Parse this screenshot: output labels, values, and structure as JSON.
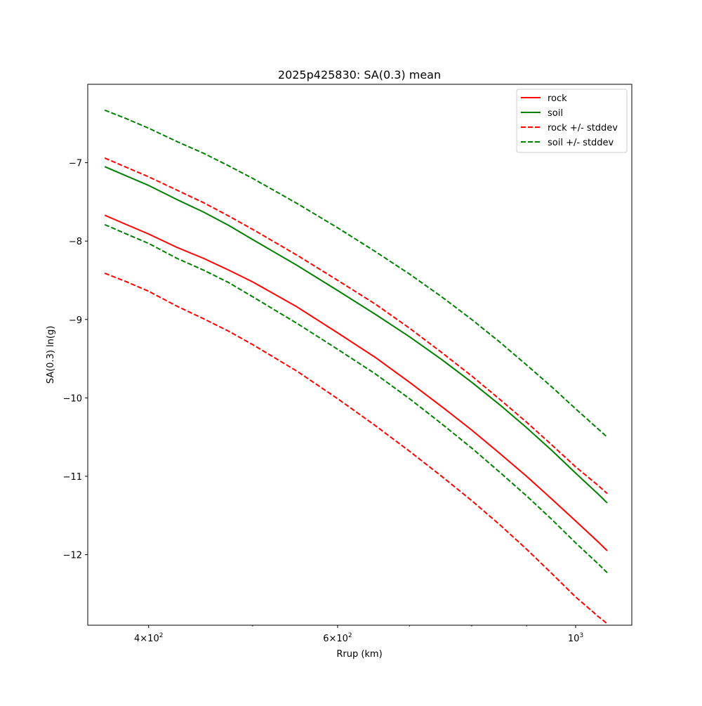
{
  "chart_data": {
    "type": "line",
    "title": "2025p425830: SA(0.3) mean",
    "xlabel": "Rrup (km)",
    "ylabel": "SA(0.3) ln(g)",
    "xscale": "log",
    "xlim": [
      351,
      1128
    ],
    "ylim": [
      -12.9,
      -6.0
    ],
    "grid": false,
    "legend_position": "top-right",
    "x_ticks": [
      {
        "value": 400,
        "base": "4×10",
        "exp": "2"
      },
      {
        "value": 600,
        "base": "6×10",
        "exp": "2"
      },
      {
        "value": 1000,
        "base": "10",
        "exp": "3"
      }
    ],
    "x_minor_ticks": [
      500,
      700,
      800,
      900
    ],
    "y_ticks": [
      {
        "value": -7,
        "label": "−7"
      },
      {
        "value": -8,
        "label": "−8"
      },
      {
        "value": -9,
        "label": "−9"
      },
      {
        "value": -10,
        "label": "−10"
      },
      {
        "value": -11,
        "label": "−11"
      },
      {
        "value": -12,
        "label": "−12"
      }
    ],
    "x": [
      364,
      380,
      400,
      425,
      450,
      475,
      500,
      550,
      600,
      650,
      700,
      750,
      800,
      850,
      900,
      950,
      1000,
      1050,
      1070
    ],
    "series": [
      {
        "name": "rock",
        "color": "#ff0000",
        "dash": "solid",
        "values": [
          -7.67,
          -7.78,
          -7.91,
          -8.08,
          -8.22,
          -8.37,
          -8.52,
          -8.84,
          -9.17,
          -9.48,
          -9.8,
          -10.11,
          -10.41,
          -10.71,
          -11.0,
          -11.29,
          -11.57,
          -11.84,
          -11.95
        ]
      },
      {
        "name": "soil",
        "color": "#008000",
        "dash": "solid",
        "values": [
          -7.05,
          -7.16,
          -7.29,
          -7.47,
          -7.63,
          -7.8,
          -7.98,
          -8.31,
          -8.63,
          -8.93,
          -9.22,
          -9.51,
          -9.8,
          -10.09,
          -10.38,
          -10.67,
          -10.96,
          -11.23,
          -11.34
        ]
      },
      {
        "name": "rock +/- stddev",
        "color": "#ff0000",
        "dash": "dashed",
        "values": [
          -6.94,
          -7.05,
          -7.18,
          -7.35,
          -7.51,
          -7.68,
          -7.85,
          -8.18,
          -8.5,
          -8.8,
          -9.11,
          -9.42,
          -9.72,
          -10.02,
          -10.31,
          -10.6,
          -10.88,
          -11.12,
          -11.22
        ]
      },
      {
        "name": "rock +/- stddev",
        "color": "#ff0000",
        "dash": "dashed",
        "in_legend": false,
        "values": [
          -8.41,
          -8.51,
          -8.64,
          -8.83,
          -8.99,
          -9.15,
          -9.32,
          -9.66,
          -10.01,
          -10.35,
          -10.68,
          -11.0,
          -11.31,
          -11.62,
          -11.93,
          -12.24,
          -12.54,
          -12.79,
          -12.88
        ]
      },
      {
        "name": "soil +/- stddev",
        "color": "#008000",
        "dash": "dashed",
        "values": [
          -6.33,
          -6.43,
          -6.56,
          -6.73,
          -6.88,
          -7.04,
          -7.2,
          -7.52,
          -7.83,
          -8.13,
          -8.42,
          -8.71,
          -9.0,
          -9.29,
          -9.58,
          -9.86,
          -10.14,
          -10.4,
          -10.5
        ]
      },
      {
        "name": "soil +/- stddev",
        "color": "#008000",
        "dash": "dashed",
        "in_legend": false,
        "values": [
          -7.79,
          -7.9,
          -8.03,
          -8.22,
          -8.37,
          -8.53,
          -8.71,
          -9.05,
          -9.38,
          -9.69,
          -10.01,
          -10.33,
          -10.64,
          -10.95,
          -11.25,
          -11.55,
          -11.85,
          -12.12,
          -12.23
        ]
      }
    ]
  }
}
